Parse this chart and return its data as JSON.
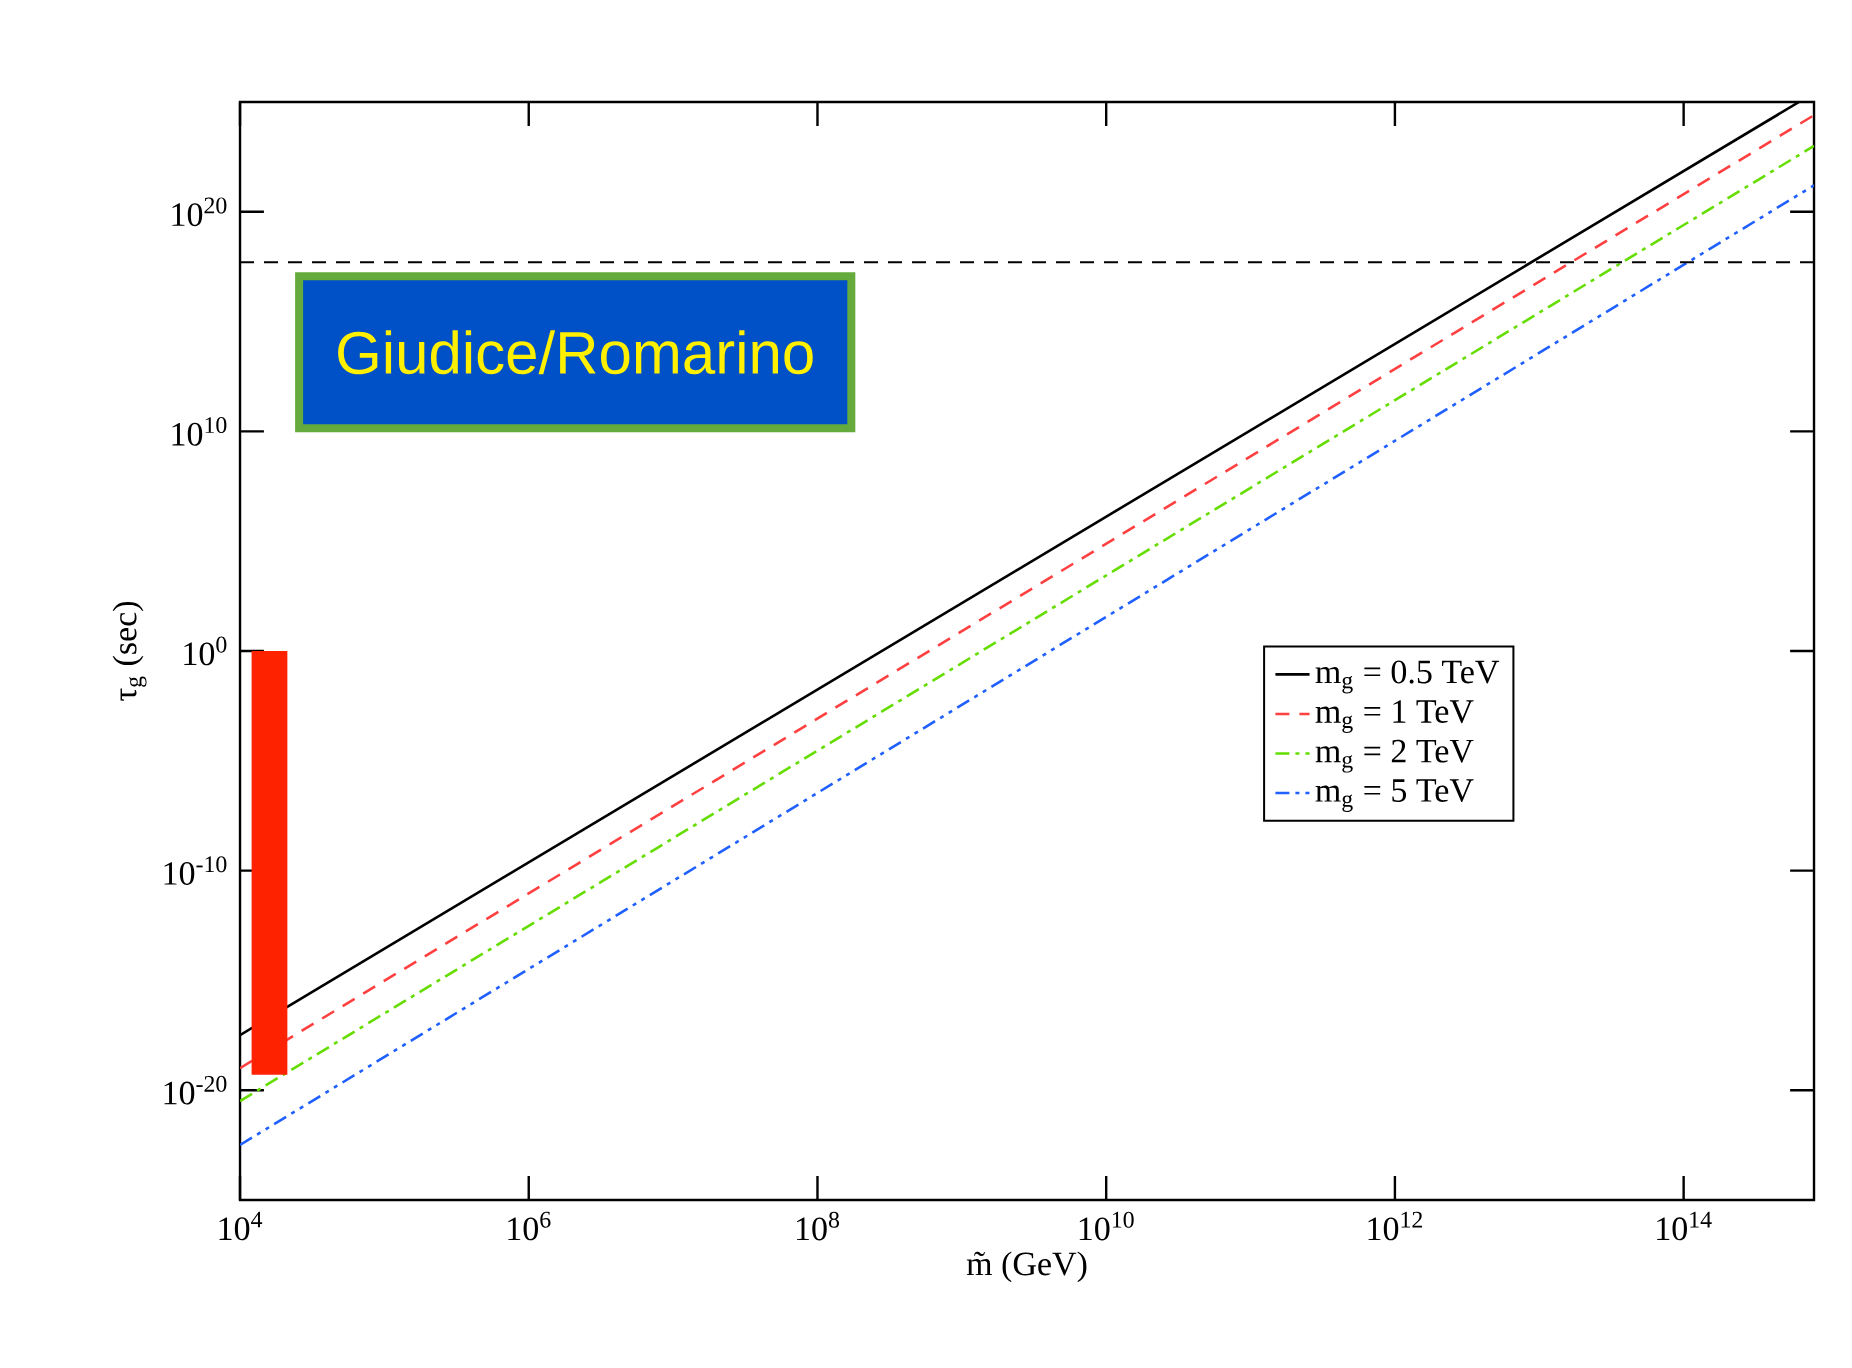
{
  "chart_data": {
    "type": "line",
    "xlabel": "m̃ (GeV)",
    "ylabel": "τ$_{g}$ (sec)",
    "log": "xy",
    "xlim": [
      10000,
      800000000000000.0
    ],
    "ylim": [
      1e-25,
      1e+25
    ],
    "xticks": [
      {
        "value": 10000.0,
        "label": "10$^{4}$"
      },
      {
        "value": 1000000.0,
        "label": "10$^{6}$"
      },
      {
        "value": 100000000.0,
        "label": "10$^{8}$"
      },
      {
        "value": 10000000000.0,
        "label": "10$^{10}$"
      },
      {
        "value": 1000000000000.0,
        "label": "10$^{12}$"
      },
      {
        "value": 100000000000000.0,
        "label": "10$^{14}$"
      }
    ],
    "yticks": [
      {
        "value": 1e-20,
        "label": "10$^{-20}$"
      },
      {
        "value": 1e-10,
        "label": "10$^{-10}$"
      },
      {
        "value": 1,
        "label": "10$^{0}$"
      },
      {
        "value": 10000000000.0,
        "label": "10$^{10}$"
      },
      {
        "value": 1e+20,
        "label": "10$^{20}$"
      }
    ],
    "series": [
      {
        "name": "m$_{g}$ = 0.5 TeV",
        "color": "#000000",
        "line_style": "solid",
        "x": [
          10000.0,
          630000000000000.0
        ],
        "values": [
          3.2e-18,
          1e+25
        ]
      },
      {
        "name": "m$_{g}$ = 1 TeV",
        "color": "#ff4040",
        "line_style": "dashed",
        "x": [
          10000.0,
          800000000000000.0
        ],
        "values": [
          1e-19,
          2.5e+24
        ]
      },
      {
        "name": "m$_{g}$ = 2 TeV",
        "color": "#66dd00",
        "line_style": "dashdot",
        "x": [
          10000.0,
          800000000000000.0
        ],
        "values": [
          3.2e-21,
          1e+23
        ]
      },
      {
        "name": "m$_{g}$ = 5 TeV",
        "color": "#2060ff",
        "line_style": "dashdotdot",
        "x": [
          10000.0,
          800000000000000.0
        ],
        "values": [
          3.2e-23,
          1.6e+21
        ]
      },
      {
        "type": "bar",
        "color": "#ff2200",
        "x": [
          16000.0
        ],
        "base": [
          5e-20
        ],
        "values": [
          1
        ]
      }
    ],
    "ref_lines": [
      {
        "axis": "y",
        "value": 5e+17,
        "color": "#000000",
        "line_style": "dashed"
      }
    ],
    "annotations": [
      "Giudice/Romarino"
    ],
    "legend": "right"
  }
}
